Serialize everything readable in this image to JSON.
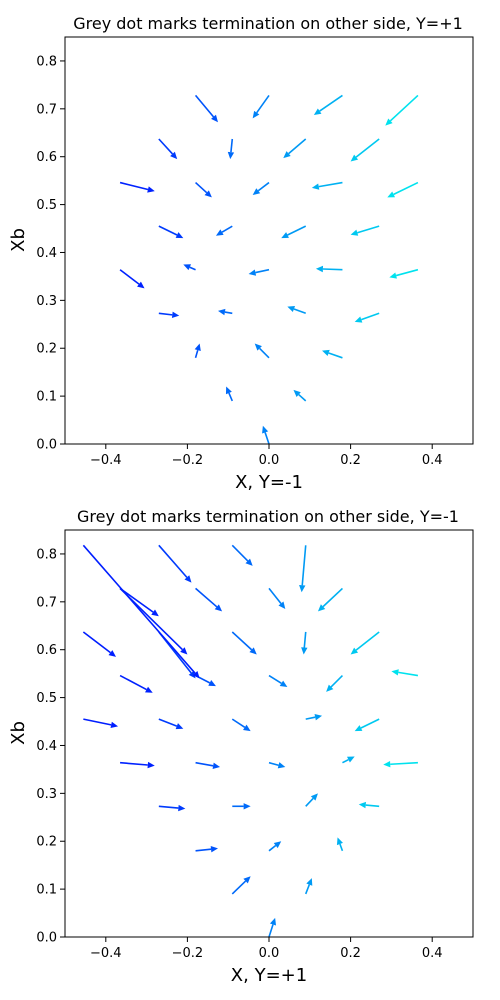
{
  "chart_data": [
    {
      "type": "quiver",
      "title": "Grey dot marks termination on other side, Y=+1",
      "xlabel": "X, Y=-1",
      "ylabel": "Xb",
      "xlim": [
        -0.5,
        0.5
      ],
      "ylim": [
        0.0,
        0.85
      ],
      "xticks": [
        -0.4,
        -0.2,
        0.0,
        0.2,
        0.4
      ],
      "xtick_labels": [
        "−0.4",
        "−0.2",
        "0.0",
        "0.2",
        "0.4"
      ],
      "yticks": [
        0.0,
        0.1,
        0.2,
        0.3,
        0.4,
        0.5,
        0.6,
        0.7,
        0.8
      ],
      "ytick_labels": [
        "0.0",
        "0.1",
        "0.2",
        "0.3",
        "0.4",
        "0.5",
        "0.6",
        "0.7",
        "0.8"
      ],
      "colormap": "blue-to-cyan",
      "arrows": [
        {
          "x0": 0.0,
          "y0": 0.0,
          "x1": -0.015,
          "y1": 0.038
        },
        {
          "x0": -0.09,
          "y0": 0.09,
          "x1": -0.105,
          "y1": 0.12
        },
        {
          "x0": 0.09,
          "y0": 0.09,
          "x1": 0.06,
          "y1": 0.113
        },
        {
          "x0": -0.18,
          "y0": 0.18,
          "x1": -0.17,
          "y1": 0.21
        },
        {
          "x0": 0.0,
          "y0": 0.18,
          "x1": -0.035,
          "y1": 0.21
        },
        {
          "x0": 0.18,
          "y0": 0.18,
          "x1": 0.13,
          "y1": 0.195
        },
        {
          "x0": -0.27,
          "y0": 0.273,
          "x1": -0.22,
          "y1": 0.268
        },
        {
          "x0": -0.09,
          "y0": 0.273,
          "x1": -0.125,
          "y1": 0.278
        },
        {
          "x0": 0.09,
          "y0": 0.273,
          "x1": 0.045,
          "y1": 0.287
        },
        {
          "x0": 0.27,
          "y0": 0.273,
          "x1": 0.21,
          "y1": 0.255
        },
        {
          "x0": -0.365,
          "y0": 0.364,
          "x1": -0.305,
          "y1": 0.325
        },
        {
          "x0": -0.18,
          "y0": 0.364,
          "x1": -0.21,
          "y1": 0.375
        },
        {
          "x0": 0.0,
          "y0": 0.364,
          "x1": -0.05,
          "y1": 0.355
        },
        {
          "x0": 0.18,
          "y0": 0.364,
          "x1": 0.115,
          "y1": 0.366
        },
        {
          "x0": 0.365,
          "y0": 0.364,
          "x1": 0.295,
          "y1": 0.348
        },
        {
          "x0": -0.27,
          "y0": 0.455,
          "x1": -0.21,
          "y1": 0.43
        },
        {
          "x0": -0.09,
          "y0": 0.455,
          "x1": -0.13,
          "y1": 0.435
        },
        {
          "x0": 0.09,
          "y0": 0.455,
          "x1": 0.03,
          "y1": 0.43
        },
        {
          "x0": 0.27,
          "y0": 0.455,
          "x1": 0.2,
          "y1": 0.437
        },
        {
          "x0": -0.365,
          "y0": 0.546,
          "x1": -0.28,
          "y1": 0.528
        },
        {
          "x0": -0.18,
          "y0": 0.546,
          "x1": -0.14,
          "y1": 0.515
        },
        {
          "x0": 0.0,
          "y0": 0.546,
          "x1": -0.04,
          "y1": 0.52
        },
        {
          "x0": 0.18,
          "y0": 0.546,
          "x1": 0.105,
          "y1": 0.535
        },
        {
          "x0": 0.365,
          "y0": 0.546,
          "x1": 0.29,
          "y1": 0.515
        },
        {
          "x0": -0.27,
          "y0": 0.637,
          "x1": -0.225,
          "y1": 0.595
        },
        {
          "x0": -0.09,
          "y0": 0.637,
          "x1": -0.095,
          "y1": 0.595
        },
        {
          "x0": 0.09,
          "y0": 0.637,
          "x1": 0.035,
          "y1": 0.597
        },
        {
          "x0": 0.27,
          "y0": 0.637,
          "x1": 0.2,
          "y1": 0.59
        },
        {
          "x0": -0.18,
          "y0": 0.728,
          "x1": -0.125,
          "y1": 0.672
        },
        {
          "x0": 0.0,
          "y0": 0.728,
          "x1": -0.04,
          "y1": 0.68
        },
        {
          "x0": 0.18,
          "y0": 0.728,
          "x1": 0.11,
          "y1": 0.687
        },
        {
          "x0": 0.365,
          "y0": 0.728,
          "x1": 0.285,
          "y1": 0.665
        }
      ]
    },
    {
      "type": "quiver",
      "title": "Grey dot marks termination on other side, Y=-1",
      "xlabel": "X, Y=+1",
      "ylabel": "Xb",
      "xlim": [
        -0.5,
        0.5
      ],
      "ylim": [
        0.0,
        0.85
      ],
      "xticks": [
        -0.4,
        -0.2,
        0.0,
        0.2,
        0.4
      ],
      "xtick_labels": [
        "−0.4",
        "−0.2",
        "0.0",
        "0.2",
        "0.4"
      ],
      "yticks": [
        0.0,
        0.1,
        0.2,
        0.3,
        0.4,
        0.5,
        0.6,
        0.7,
        0.8
      ],
      "ytick_labels": [
        "0.0",
        "0.1",
        "0.2",
        "0.3",
        "0.4",
        "0.5",
        "0.6",
        "0.7",
        "0.8"
      ],
      "colormap": "blue-to-cyan",
      "arrows": [
        {
          "x0": 0.0,
          "y0": 0.0,
          "x1": 0.015,
          "y1": 0.04
        },
        {
          "x0": -0.09,
          "y0": 0.09,
          "x1": -0.045,
          "y1": 0.127
        },
        {
          "x0": 0.09,
          "y0": 0.09,
          "x1": 0.105,
          "y1": 0.123
        },
        {
          "x0": -0.18,
          "y0": 0.18,
          "x1": -0.125,
          "y1": 0.185
        },
        {
          "x0": 0.0,
          "y0": 0.18,
          "x1": 0.03,
          "y1": 0.2
        },
        {
          "x0": 0.18,
          "y0": 0.18,
          "x1": 0.168,
          "y1": 0.208
        },
        {
          "x0": -0.27,
          "y0": 0.273,
          "x1": -0.205,
          "y1": 0.268
        },
        {
          "x0": -0.09,
          "y0": 0.273,
          "x1": -0.045,
          "y1": 0.273
        },
        {
          "x0": 0.09,
          "y0": 0.273,
          "x1": 0.12,
          "y1": 0.3
        },
        {
          "x0": 0.27,
          "y0": 0.273,
          "x1": 0.22,
          "y1": 0.277
        },
        {
          "x0": -0.365,
          "y0": 0.364,
          "x1": -0.28,
          "y1": 0.358
        },
        {
          "x0": -0.18,
          "y0": 0.364,
          "x1": -0.12,
          "y1": 0.355
        },
        {
          "x0": 0.0,
          "y0": 0.364,
          "x1": 0.04,
          "y1": 0.355
        },
        {
          "x0": 0.18,
          "y0": 0.364,
          "x1": 0.21,
          "y1": 0.377
        },
        {
          "x0": 0.365,
          "y0": 0.364,
          "x1": 0.28,
          "y1": 0.36
        },
        {
          "x0": -0.455,
          "y0": 0.455,
          "x1": -0.37,
          "y1": 0.44
        },
        {
          "x0": -0.27,
          "y0": 0.455,
          "x1": -0.21,
          "y1": 0.435
        },
        {
          "x0": -0.09,
          "y0": 0.455,
          "x1": -0.045,
          "y1": 0.43
        },
        {
          "x0": 0.09,
          "y0": 0.455,
          "x1": 0.13,
          "y1": 0.462
        },
        {
          "x0": 0.27,
          "y0": 0.455,
          "x1": 0.21,
          "y1": 0.43
        },
        {
          "x0": -0.365,
          "y0": 0.546,
          "x1": -0.285,
          "y1": 0.51
        },
        {
          "x0": -0.18,
          "y0": 0.546,
          "x1": -0.13,
          "y1": 0.524
        },
        {
          "x0": 0.0,
          "y0": 0.546,
          "x1": 0.045,
          "y1": 0.522
        },
        {
          "x0": 0.18,
          "y0": 0.546,
          "x1": 0.14,
          "y1": 0.512
        },
        {
          "x0": 0.365,
          "y0": 0.546,
          "x1": 0.3,
          "y1": 0.555
        },
        {
          "x0": -0.455,
          "y0": 0.637,
          "x1": -0.375,
          "y1": 0.585
        },
        {
          "x0": -0.27,
          "y0": 0.637,
          "x1": -0.18,
          "y1": 0.54
        },
        {
          "x0": -0.09,
          "y0": 0.637,
          "x1": -0.03,
          "y1": 0.59
        },
        {
          "x0": 0.09,
          "y0": 0.637,
          "x1": 0.085,
          "y1": 0.59
        },
        {
          "x0": 0.27,
          "y0": 0.637,
          "x1": 0.2,
          "y1": 0.59
        },
        {
          "x0": -0.365,
          "y0": 0.728,
          "x1": -0.27,
          "y1": 0.67
        },
        {
          "x0": -0.18,
          "y0": 0.728,
          "x1": -0.115,
          "y1": 0.68
        },
        {
          "x0": 0.0,
          "y0": 0.728,
          "x1": 0.04,
          "y1": 0.685
        },
        {
          "x0": 0.18,
          "y0": 0.728,
          "x1": 0.12,
          "y1": 0.68
        },
        {
          "x0": -0.455,
          "y0": 0.818,
          "x1": -0.17,
          "y1": 0.54
        },
        {
          "x0": -0.27,
          "y0": 0.818,
          "x1": -0.19,
          "y1": 0.74
        },
        {
          "x0": -0.09,
          "y0": 0.818,
          "x1": -0.04,
          "y1": 0.775
        },
        {
          "x0": 0.09,
          "y0": 0.818,
          "x1": 0.08,
          "y1": 0.72
        },
        {
          "x0": -0.365,
          "y0": 0.728,
          "x1": -0.2,
          "y1": 0.59
        }
      ]
    }
  ]
}
